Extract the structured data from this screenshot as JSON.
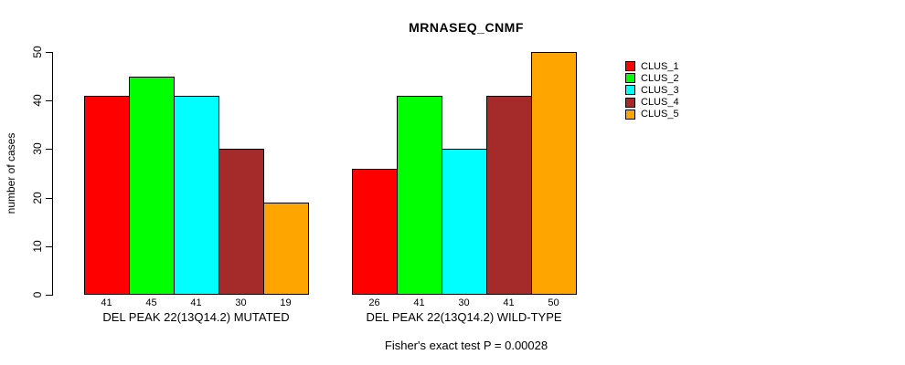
{
  "chart_data": {
    "type": "bar",
    "title": "MRNASEQ_CNMF",
    "ylabel": "number of cases",
    "xlabel": "",
    "ylim": [
      0,
      50
    ],
    "yticks": [
      0,
      10,
      20,
      30,
      40,
      50
    ],
    "grid": false,
    "legend_position": "right",
    "series": [
      {
        "name": "CLUS_1",
        "color": "#FF0000"
      },
      {
        "name": "CLUS_2",
        "color": "#00FF00"
      },
      {
        "name": "CLUS_3",
        "color": "#00FFFF"
      },
      {
        "name": "CLUS_4",
        "color": "#A52A2A"
      },
      {
        "name": "CLUS_5",
        "color": "#FFA500"
      }
    ],
    "groups": [
      {
        "label": "DEL PEAK 22(13Q14.2) MUTATED",
        "values": [
          41,
          45,
          41,
          30,
          19
        ]
      },
      {
        "label": "DEL PEAK 22(13Q14.2) WILD-TYPE",
        "values": [
          26,
          41,
          30,
          41,
          50
        ]
      }
    ],
    "bar_value_labels": [
      [
        41,
        45,
        41,
        30,
        19
      ],
      [
        26,
        41,
        30,
        41,
        50
      ]
    ],
    "annotation": "Fisher's exact test P = 0.00028",
    "axis_color": "#000000",
    "background_color": "#FFFFFF"
  }
}
